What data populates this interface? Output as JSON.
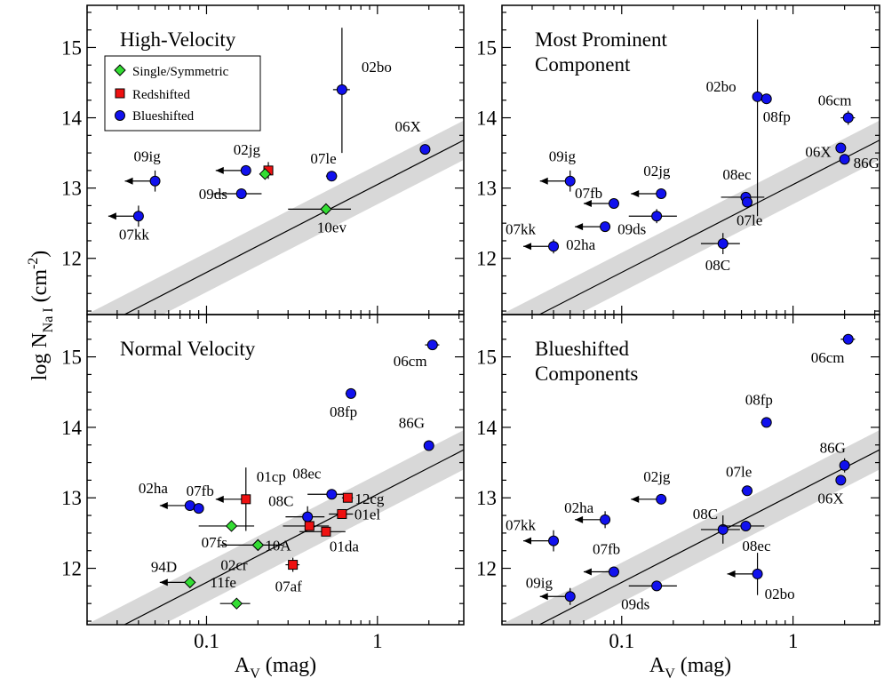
{
  "x_axis_label": "A",
  "x_axis_label_sub": "V",
  "x_axis_label_unit": " (mag)",
  "y_axis_label": "log N",
  "y_axis_label_sub": "Na I",
  "y_axis_label_unit_open": " (cm",
  "y_axis_label_unit_sup": "-2",
  "y_axis_label_unit_close": ")",
  "colors": {
    "single": "#33dd33",
    "redshifted": "#ee1111",
    "blueshifted": "#1111ee",
    "band": "#d8d8d8",
    "frame": "#000000"
  },
  "legend": [
    {
      "label": "Single/Symmetric",
      "marker": "diamond",
      "color": "#33dd33"
    },
    {
      "label": "Redshifted",
      "marker": "square",
      "color": "#ee1111"
    },
    {
      "label": "Blueshifted",
      "marker": "circle",
      "color": "#1111ee"
    }
  ],
  "chart_data": [
    {
      "type": "scatter",
      "title_lines": [
        "High-Velocity"
      ],
      "x_scale": "log",
      "xlim": [
        0.02,
        3.2
      ],
      "ylim": [
        11.2,
        15.6
      ],
      "x_ticks": [
        0.1,
        1
      ],
      "x_tick_labels": [
        "0.1",
        "1"
      ],
      "y_ticks": [
        12,
        13,
        14,
        15
      ],
      "y_tick_labels": [
        "12",
        "13",
        "14",
        "15"
      ],
      "relation": {
        "slope": 1.25,
        "intercept": 13.05,
        "band": 0.28
      },
      "points": [
        {
          "label": "02bo",
          "x": 0.62,
          "y": 14.4,
          "xerr": 0.07,
          "yerr_lo": 0.9,
          "yerr_hi": 0.88,
          "marker": "circle"
        },
        {
          "label": "06X",
          "x": 1.9,
          "y": 13.55,
          "marker": "circle"
        },
        {
          "label": "07le",
          "x": 0.54,
          "y": 13.17,
          "xerr": 0.04,
          "marker": "circle"
        },
        {
          "label": "02jg",
          "x": 0.17,
          "y": 13.25,
          "upper_limit": true,
          "marker": "circle"
        },
        {
          "label": "",
          "x": 0.23,
          "y": 13.25,
          "yerr": 0.12,
          "marker": "square"
        },
        {
          "label": "",
          "x": 0.22,
          "y": 13.2,
          "marker": "diamond"
        },
        {
          "label": "09ig",
          "x": 0.05,
          "y": 13.1,
          "yerr": 0.15,
          "upper_limit": true,
          "marker": "circle"
        },
        {
          "label": "09ds",
          "x": 0.16,
          "y": 12.92,
          "xerr": 0.05,
          "marker": "circle"
        },
        {
          "label": "07kk",
          "x": 0.04,
          "y": 12.6,
          "yerr": 0.15,
          "upper_limit": true,
          "marker": "circle"
        },
        {
          "label": "10ev",
          "x": 0.5,
          "y": 12.7,
          "xerr": 0.2,
          "marker": "diamond"
        }
      ]
    },
    {
      "type": "scatter",
      "title_lines": [
        "Most Prominent",
        "Component"
      ],
      "x_scale": "log",
      "xlim": [
        0.02,
        3.2
      ],
      "ylim": [
        11.2,
        15.6
      ],
      "x_ticks": [
        0.1,
        1
      ],
      "x_tick_labels": [
        "0.1",
        "1"
      ],
      "y_ticks": [
        12,
        13,
        14,
        15
      ],
      "y_tick_labels": [
        "12",
        "13",
        "14",
        "15"
      ],
      "relation": {
        "slope": 1.25,
        "intercept": 13.05,
        "band": 0.28
      },
      "points": [
        {
          "label": "02bo",
          "x": 0.62,
          "y": 14.3,
          "yerr_lo": 1.7,
          "yerr_hi": 1.1,
          "marker": "circle"
        },
        {
          "label": "08fp",
          "x": 0.7,
          "y": 14.27,
          "xerr": 0.05,
          "marker": "circle"
        },
        {
          "label": "06cm",
          "x": 2.1,
          "y": 14.0,
          "xerr": 0.2,
          "yerr": 0.1,
          "marker": "circle"
        },
        {
          "label": "06X",
          "x": 1.9,
          "y": 13.57,
          "marker": "circle"
        },
        {
          "label": "86G",
          "x": 2.0,
          "y": 13.41,
          "marker": "circle"
        },
        {
          "label": "09ig",
          "x": 0.05,
          "y": 13.1,
          "yerr": 0.15,
          "upper_limit": true,
          "marker": "circle"
        },
        {
          "label": "02jg",
          "x": 0.17,
          "y": 12.92,
          "upper_limit": true,
          "marker": "circle"
        },
        {
          "label": "07fb",
          "x": 0.09,
          "y": 12.78,
          "upper_limit": true,
          "marker": "circle"
        },
        {
          "label": "09ds",
          "x": 0.16,
          "y": 12.6,
          "xerr": 0.05,
          "yerr": 0.1,
          "marker": "circle"
        },
        {
          "label": "02ha",
          "x": 0.08,
          "y": 12.45,
          "upper_limit": true,
          "marker": "circle"
        },
        {
          "label": "07kk",
          "x": 0.04,
          "y": 12.17,
          "yerr": 0.1,
          "upper_limit": true,
          "marker": "circle"
        },
        {
          "label": "08ec",
          "x": 0.53,
          "y": 12.87,
          "xerr": 0.15,
          "marker": "circle"
        },
        {
          "label": "07le",
          "x": 0.54,
          "y": 12.8,
          "marker": "circle"
        },
        {
          "label": "08C",
          "x": 0.39,
          "y": 12.21,
          "xerr": 0.1,
          "yerr": 0.15,
          "marker": "circle"
        }
      ]
    },
    {
      "type": "scatter",
      "title_lines": [
        "Normal Velocity"
      ],
      "x_scale": "log",
      "xlim": [
        0.02,
        3.2
      ],
      "ylim": [
        11.2,
        15.6
      ],
      "x_ticks": [
        0.1,
        1
      ],
      "x_tick_labels": [
        "0.1",
        "1"
      ],
      "y_ticks": [
        12,
        13,
        14,
        15
      ],
      "y_tick_labels": [
        "12",
        "13",
        "14",
        "15"
      ],
      "relation": {
        "slope": 1.25,
        "intercept": 13.05,
        "band": 0.28
      },
      "points": [
        {
          "label": "06cm",
          "x": 2.1,
          "y": 15.17,
          "xerr": 0.2,
          "marker": "circle"
        },
        {
          "label": "08fp",
          "x": 0.7,
          "y": 14.48,
          "xerr": 0.05,
          "marker": "circle"
        },
        {
          "label": "86G",
          "x": 2.0,
          "y": 13.74,
          "marker": "circle"
        },
        {
          "label": "08ec",
          "x": 0.54,
          "y": 13.05,
          "xerr": 0.15,
          "marker": "circle"
        },
        {
          "label": "12cg",
          "x": 0.67,
          "y": 13.0,
          "xerr": 0.05,
          "marker": "square"
        },
        {
          "label": "01cp",
          "x": 0.17,
          "y": 12.98,
          "yerr": 0.45,
          "upper_limit": true,
          "marker": "square"
        },
        {
          "label": "02ha",
          "x": 0.08,
          "y": 12.89,
          "upper_limit": true,
          "marker": "circle"
        },
        {
          "label": "07fb",
          "x": 0.09,
          "y": 12.85,
          "marker": "circle"
        },
        {
          "label": "08C",
          "x": 0.39,
          "y": 12.73,
          "xerr": 0.1,
          "yerr": 0.15,
          "marker": "circle"
        },
        {
          "label": "01el",
          "x": 0.62,
          "y": 12.77,
          "xerr": 0.1,
          "marker": "square"
        },
        {
          "label": "",
          "x": 0.4,
          "y": 12.6,
          "xerr": 0.12,
          "marker": "square"
        },
        {
          "label": "01da",
          "x": 0.5,
          "y": 12.52,
          "xerr": 0.15,
          "marker": "square"
        },
        {
          "label": "07fs",
          "x": 0.14,
          "y": 12.6,
          "xerr": 0.05,
          "marker": "diamond"
        },
        {
          "label": "10A",
          "x": 0.2,
          "y": 12.33,
          "xerr": 0.08,
          "marker": "diamond"
        },
        {
          "label": "02cr",
          "x": 0.2,
          "y": 12.33,
          "marker": "diamond"
        },
        {
          "label": "07af",
          "x": 0.32,
          "y": 12.05,
          "xerr": 0.03,
          "yerr": 0.1,
          "marker": "square"
        },
        {
          "label": "94D",
          "x": 0.08,
          "y": 11.8,
          "upper_limit": true,
          "marker": "diamond"
        },
        {
          "label": "11fe",
          "x": 0.15,
          "y": 11.5,
          "xerr": 0.03,
          "marker": "diamond"
        }
      ]
    },
    {
      "type": "scatter",
      "title_lines": [
        "Blueshifted",
        "Components"
      ],
      "x_scale": "log",
      "xlim": [
        0.02,
        3.2
      ],
      "ylim": [
        11.2,
        15.6
      ],
      "x_ticks": [
        0.1,
        1
      ],
      "x_tick_labels": [
        "0.1",
        "1"
      ],
      "y_ticks": [
        12,
        13,
        14,
        15
      ],
      "y_tick_labels": [
        "12",
        "13",
        "14",
        "15"
      ],
      "relation": {
        "slope": 1.25,
        "intercept": 13.05,
        "band": 0.28
      },
      "points": [
        {
          "label": "06cm",
          "x": 2.1,
          "y": 15.25,
          "xerr": 0.2,
          "marker": "circle"
        },
        {
          "label": "08fp",
          "x": 0.7,
          "y": 14.07,
          "xerr": 0.05,
          "marker": "circle"
        },
        {
          "label": "86G",
          "x": 2.0,
          "y": 13.46,
          "yerr": 0.1,
          "marker": "circle"
        },
        {
          "label": "06X",
          "x": 1.9,
          "y": 13.25,
          "marker": "circle"
        },
        {
          "label": "07le",
          "x": 0.54,
          "y": 13.1,
          "xerr": 0.04,
          "marker": "circle"
        },
        {
          "label": "02jg",
          "x": 0.17,
          "y": 12.98,
          "upper_limit": true,
          "marker": "circle"
        },
        {
          "label": "02ha",
          "x": 0.08,
          "y": 12.69,
          "yerr": 0.12,
          "upper_limit": true,
          "marker": "circle"
        },
        {
          "label": "07kk",
          "x": 0.04,
          "y": 12.39,
          "yerr": 0.15,
          "upper_limit": true,
          "marker": "circle"
        },
        {
          "label": "08C",
          "x": 0.39,
          "y": 12.55,
          "xerr": 0.1,
          "yerr": 0.2,
          "marker": "circle"
        },
        {
          "label": "08ec",
          "x": 0.53,
          "y": 12.6,
          "xerr": 0.15,
          "marker": "circle"
        },
        {
          "label": "07fb",
          "x": 0.09,
          "y": 11.95,
          "upper_limit": true,
          "marker": "circle"
        },
        {
          "label": "09ig",
          "x": 0.05,
          "y": 11.6,
          "yerr": 0.12,
          "upper_limit": true,
          "marker": "circle"
        },
        {
          "label": "09ds",
          "x": 0.16,
          "y": 11.75,
          "xerr": 0.05,
          "marker": "circle"
        },
        {
          "label": "02bo",
          "x": 0.62,
          "y": 11.92,
          "yerr": 0.3,
          "upper_limit": true,
          "marker": "circle"
        }
      ]
    }
  ]
}
